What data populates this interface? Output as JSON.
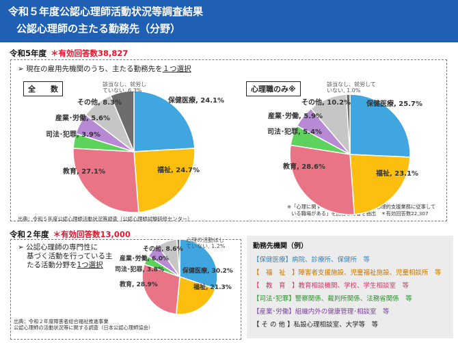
{
  "header": {
    "line1": "令和５年度公認心理師活動状況等調査結果",
    "line2": "公認心理師の主たる勤務先（分野）"
  },
  "r5": {
    "year": "令和5年度",
    "count": "＊有効回答数38,827",
    "question": "現在の雇用先機関のうち、主たる勤務先を",
    "question_u": "１つ選択",
    "badge_all": "全　　数",
    "badge_psych": "心理職のみ※",
    "note_line1": "※「心理に関する職種として雇用され、心理的支援業務に従事して",
    "note_line2": "いる職場がある」を回答した者を抽出　＊有効回答数22,307",
    "source": "出典：令和５年度公認心理師活動状況等調査（公認心理師試験研修センター）"
  },
  "r2": {
    "year": "令和２年度",
    "count": "＊有効回答数13,000",
    "q1": "公認心理師の専門性に",
    "q2": "基づく活動を行っている主",
    "q3": "たる活動分野を",
    "q3_u": "1つ選択",
    "source1": "出典：令和２年度障害者総合福祉推進事業",
    "source2": "公認心理師の活動状況等に関する調査（日本公認心理師協会）"
  },
  "examples": {
    "title": "勤務先機関（例）",
    "rows": [
      {
        "label": "【保健医療】",
        "text": "病院、診療所、保健所　等",
        "color": "#2e86c1"
      },
      {
        "label": "【　福　祉　】",
        "text": "障害者支援施設、児童福祉施設、児童相談所　等",
        "color": "#c77800"
      },
      {
        "label": "【　教　育　】",
        "text": "教育相談機関、学校、学生相談室　等",
        "color": "#d6336c"
      },
      {
        "label": "【司法･犯罪】",
        "text": "警察関係、裁判所関係、法務省関係　等",
        "color": "#2f8a2f"
      },
      {
        "label": "【産業･労働】",
        "text": "組織内外の健康管理･相談室　等",
        "color": "#7a3fa0"
      },
      {
        "label": "【 そ の 他 】",
        "text": "私設心理相談室、大学等　等",
        "color": "#222222"
      }
    ]
  },
  "chart_data": [
    {
      "type": "pie",
      "title": "全　　数",
      "categories": [
        "保健医療",
        "福祉",
        "教育",
        "司法･犯罪",
        "産業･労働",
        "その他",
        "該当なし、就労していない"
      ],
      "values": [
        24.1,
        24.7,
        27.1,
        3.9,
        5.6,
        8.3,
        6.3
      ],
      "labels": [
        "保健医療, 24.1%",
        "福祉, 24.7%",
        "教育, 27.1%",
        "司法･犯罪, 3.9%",
        "産業･労働, 5.6%",
        "その他, 8.3%",
        "該当なし、就労し|ていない, 6.3%"
      ],
      "colors": [
        "#3fa6e0",
        "#fcbf10",
        "#e87485",
        "#5dd35d",
        "#b88ad6",
        "#c6c6c6",
        "#6d6d6d"
      ]
    },
    {
      "type": "pie",
      "title": "心理職のみ※",
      "categories": [
        "保健医療",
        "福祉",
        "教育",
        "司法･犯罪",
        "産業･労働",
        "その他",
        "該当なし、就労していない"
      ],
      "values": [
        25.7,
        23.1,
        28.6,
        5.4,
        5.9,
        10.2,
        1.0
      ],
      "labels": [
        "保健医療, 25.7%",
        "福祉, 23.1%",
        "教育, 28.6%",
        "司法･犯罪, 5.4%",
        "産業･労働, 5.9%",
        "その他, 10.2%",
        "該当なし、就労して|いない, 1.0%"
      ],
      "colors": [
        "#3fa6e0",
        "#fcbf10",
        "#e87485",
        "#5dd35d",
        "#b88ad6",
        "#c6c6c6",
        "#6d6d6d"
      ]
    },
    {
      "type": "pie",
      "title": "令和２年度",
      "categories": [
        "保健医療",
        "福祉",
        "教育",
        "司法･犯罪",
        "産業･労働",
        "その他",
        "心理の活動はしていない"
      ],
      "values": [
        30.2,
        21.3,
        28.9,
        3.8,
        6.0,
        8.6,
        1.2
      ],
      "labels": [
        "保健医療, 30.2%",
        "福祉, 21.3%",
        "教育, 28.9%",
        "司法･犯罪, 3.8%",
        "産業･労働, 6.0%",
        "その他, 8.6%",
        "心理の活動はし|ていない, 1.2%"
      ],
      "colors": [
        "#3fa6e0",
        "#fcbf10",
        "#e87485",
        "#5dd35d",
        "#b88ad6",
        "#c6c6c6",
        "#6d6d6d"
      ]
    }
  ]
}
